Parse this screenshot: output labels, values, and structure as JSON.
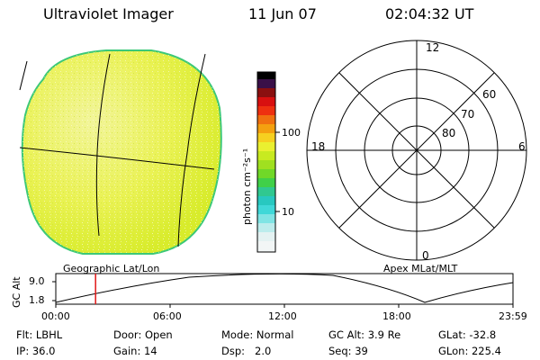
{
  "header": {
    "title": "Ultraviolet Imager",
    "date": "11 Jun 07",
    "time": "02:04:32 UT"
  },
  "colorbar": {
    "unit_label": "photon cm⁻²s⁻¹",
    "ticks": [
      "100",
      "10"
    ]
  },
  "polar_plot": {
    "clock_labels": {
      "top": "12",
      "left": "18",
      "right": "6",
      "bottom": "0"
    },
    "lat_labels": [
      "60",
      "70",
      "80"
    ]
  },
  "captions": {
    "left": "Geographic Lat/Lon",
    "right": "Apex MLat/MLT"
  },
  "timeline": {
    "ylabel": "GC Alt",
    "ytick_top": "9.0",
    "ytick_bottom": "1.8",
    "xticks": [
      "00:00",
      "06:00",
      "12:00",
      "18:00",
      "23:59"
    ],
    "marker_time_fraction": 0.087
  },
  "info": {
    "row1": [
      {
        "label": "Flt:",
        "value": "LBHL"
      },
      {
        "label": "Door:",
        "value": "Open"
      },
      {
        "label": "Mode:",
        "value": "Normal"
      },
      {
        "label": "GC Alt:",
        "value": "3.9 Re"
      },
      {
        "label": "GLat:",
        "value": "-32.8"
      }
    ],
    "row2": [
      {
        "label": "IP:",
        "value": "36.0"
      },
      {
        "label": "Gain:",
        "value": "14"
      },
      {
        "label": "Dsp:",
        "value": "2.0"
      },
      {
        "label": "Seq:",
        "value": "39"
      },
      {
        "label": "GLon:",
        "value": "225.4"
      }
    ]
  },
  "colors": {
    "disk_fill": "#e6f03a",
    "disk_rim": "#3cc878",
    "marker": "#e01818"
  }
}
